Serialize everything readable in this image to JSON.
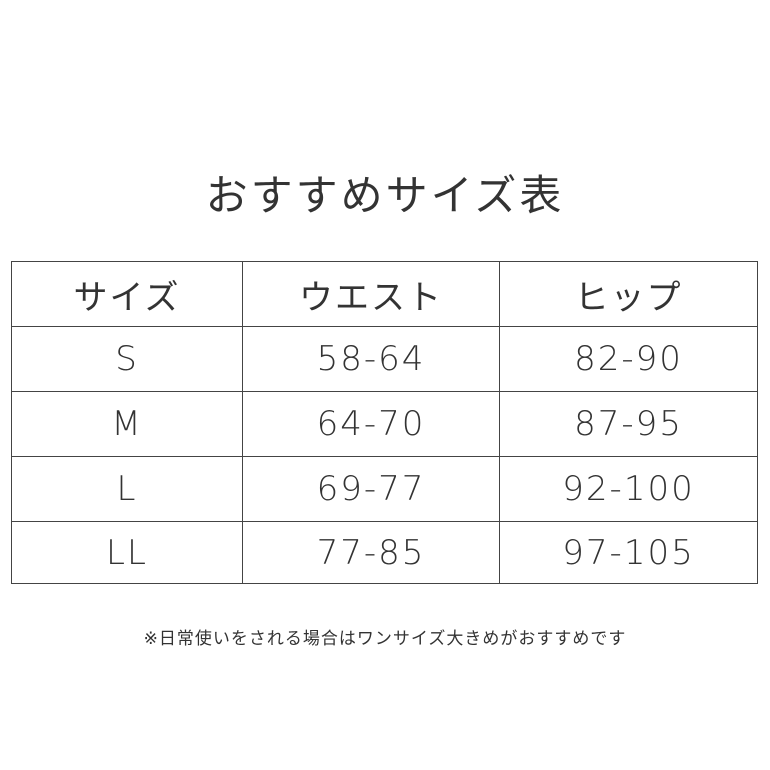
{
  "title": "おすすめサイズ表",
  "table": {
    "headers": [
      "サイズ",
      "ウエスト",
      "ヒップ"
    ],
    "rows": [
      [
        "S",
        "58-64",
        "82-90"
      ],
      [
        "M",
        "64-70",
        "87-95"
      ],
      [
        "L",
        "69-77",
        "92-100"
      ],
      [
        "LL",
        "77-85",
        "97-105"
      ]
    ]
  },
  "note": "※日常使いをされる場合はワンサイズ大きめがおすすめです"
}
